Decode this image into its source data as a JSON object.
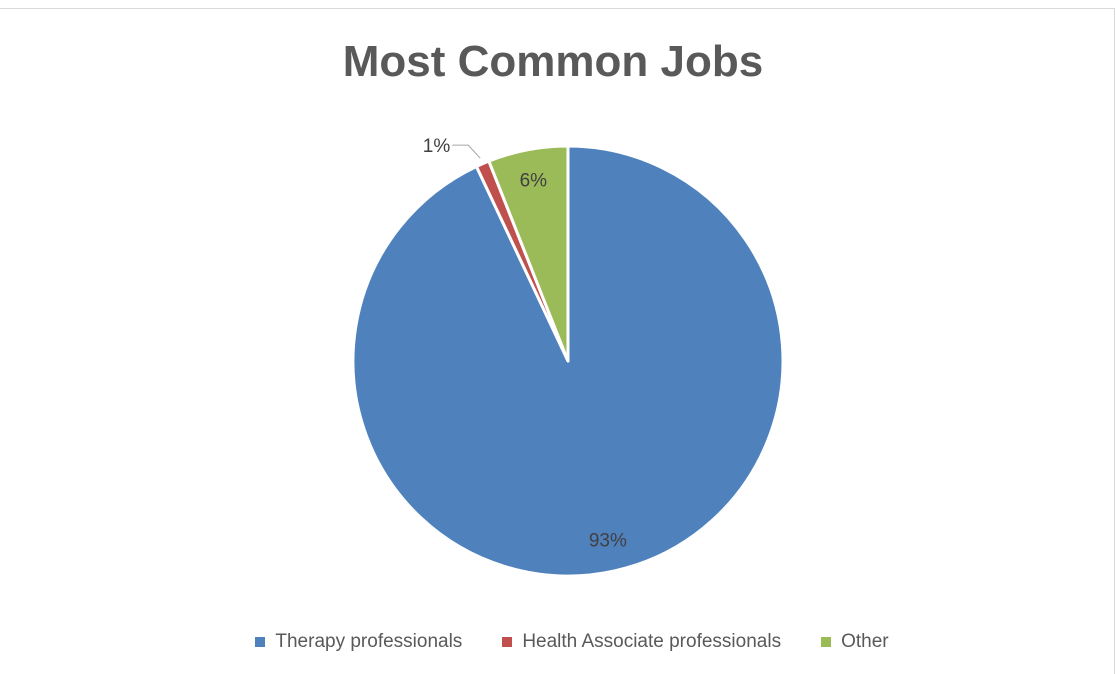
{
  "chart_data": {
    "type": "pie",
    "title": "Most Common Jobs",
    "categories": [
      "Therapy professionals",
      "Health Associate professionals",
      "Other"
    ],
    "values": [
      93,
      1,
      6
    ],
    "data_labels": [
      "93%",
      "1%",
      "6%"
    ],
    "colors": [
      "#4f81bd",
      "#c0504d",
      "#9bbb59"
    ],
    "legend_placement": "bottom"
  }
}
